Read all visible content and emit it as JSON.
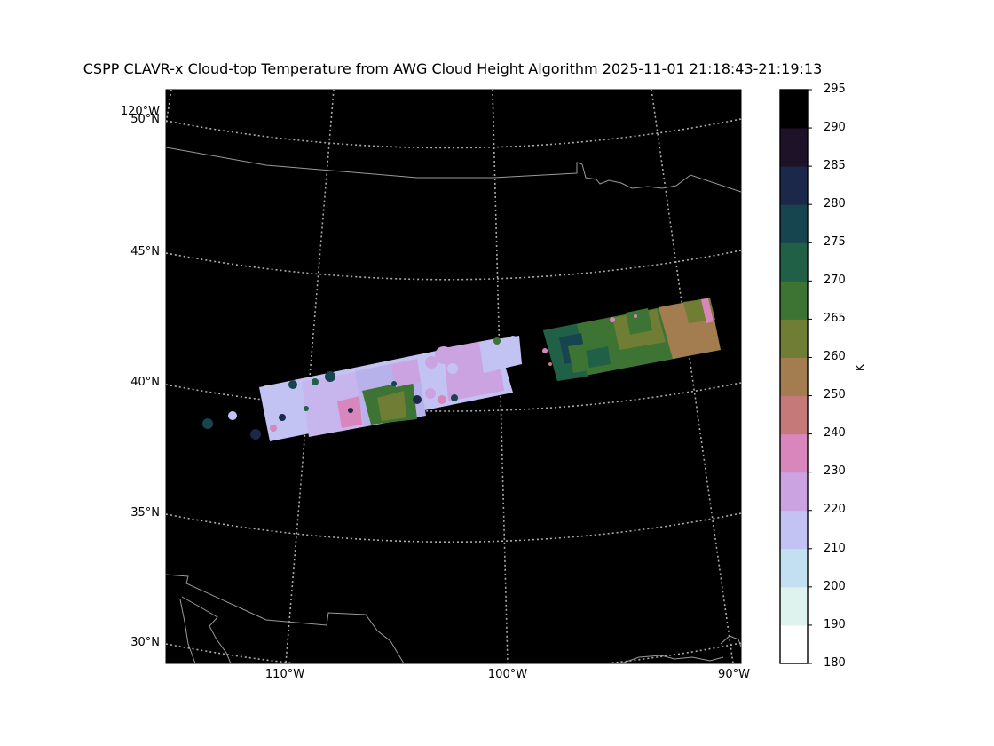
{
  "title": "CSPP CLAVR-x Cloud-top Temperature from AWG Cloud Height Algorithm 2025-11-01 21:18:43-21:19:13",
  "map": {
    "lat_labels": [
      "50°N",
      "45°N",
      "40°N",
      "35°N",
      "30°N"
    ],
    "lon_labels": [
      "110°W",
      "100°W",
      "90°W"
    ],
    "corner_label": "120°W",
    "background_color": "#000000",
    "gridline_color": "#aaaaaa",
    "border_color": "#999999"
  },
  "colorbar": {
    "unit": "K",
    "ticks": [
      "295",
      "290",
      "285",
      "280",
      "275",
      "270",
      "265",
      "260",
      "250",
      "240",
      "230",
      "220",
      "210",
      "200",
      "190",
      "180"
    ],
    "bins": [
      {
        "range": "180-190",
        "color": "#ffffff"
      },
      {
        "range": "190-200",
        "color": "#dff3ee"
      },
      {
        "range": "200-210",
        "color": "#c3e0f2"
      },
      {
        "range": "210-220",
        "color": "#c3c3f3"
      },
      {
        "range": "220-230",
        "color": "#cca3e1"
      },
      {
        "range": "230-240",
        "color": "#d886bc"
      },
      {
        "range": "240-250",
        "color": "#c57979"
      },
      {
        "range": "250-260",
        "color": "#a37c4f"
      },
      {
        "range": "260-265",
        "color": "#6f7e34"
      },
      {
        "range": "265-270",
        "color": "#3d7433"
      },
      {
        "range": "270-275",
        "color": "#1f6047"
      },
      {
        "range": "275-280",
        "color": "#16454f"
      },
      {
        "range": "280-285",
        "color": "#1b2849"
      },
      {
        "range": "285-290",
        "color": "#1e1229"
      },
      {
        "range": "290-295",
        "color": "#000000"
      }
    ]
  }
}
